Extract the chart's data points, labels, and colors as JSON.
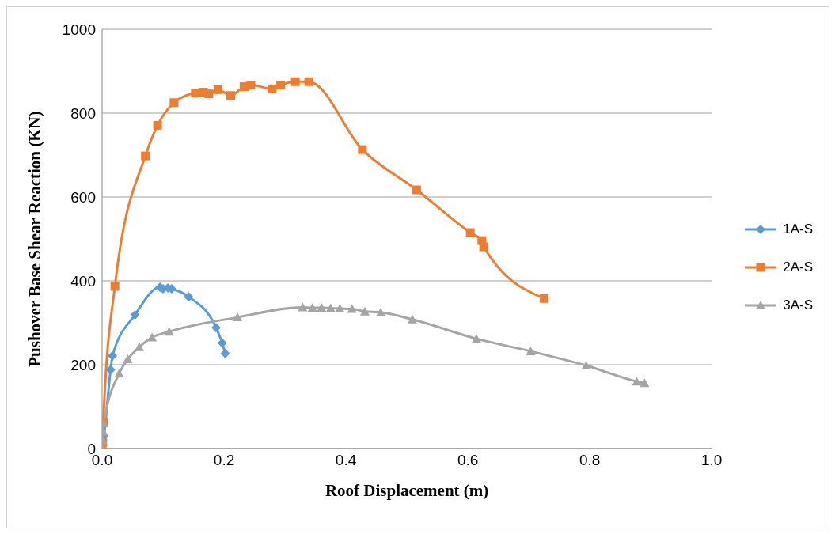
{
  "chart_data": {
    "type": "line",
    "xlabel": "Roof Displacement (m)",
    "ylabel": "Pushover Base Shear Reaction (KN)",
    "xlim": [
      0,
      1
    ],
    "xticks": [
      {
        "value": 0,
        "label": "0.0"
      },
      {
        "value": 0.2,
        "label": "0.2"
      },
      {
        "value": 0.4,
        "label": "0.4"
      },
      {
        "value": 0.6,
        "label": "0.6"
      },
      {
        "value": 0.8,
        "label": "0.8"
      },
      {
        "value": 1,
        "label": "1.0"
      }
    ],
    "ylim": [
      0,
      1000
    ],
    "yticks": [
      0,
      200,
      400,
      600,
      800,
      1000
    ],
    "grid": "y",
    "legend": "right",
    "line_style": "solid",
    "series": [
      {
        "name": "1A-S",
        "color": "#5b9bd5",
        "marker": "diamond",
        "x": [
          0,
          0.003,
          0.014,
          0.017,
          0.054,
          0.095,
          0.1,
          0.108,
          0.114,
          0.142,
          0.187,
          0.197,
          0.202
        ],
        "values": [
          0,
          30,
          188,
          221,
          319,
          385,
          381,
          383,
          381,
          362,
          288,
          252,
          227
        ]
      },
      {
        "name": "2A-S",
        "color": "#ed7d31",
        "marker": "square",
        "x": [
          0,
          0.001,
          0.002,
          0.021,
          0.071,
          0.091,
          0.118,
          0.153,
          0.166,
          0.175,
          0.19,
          0.211,
          0.233,
          0.244,
          0.279,
          0.293,
          0.317,
          0.339,
          0.427,
          0.516,
          0.604,
          0.623,
          0.626,
          0.725
        ],
        "values": [
          0,
          15,
          63,
          387,
          698,
          771,
          825,
          848,
          850,
          846,
          856,
          842,
          863,
          867,
          858,
          867,
          875,
          875,
          713,
          617,
          515,
          496,
          481,
          358
        ]
      },
      {
        "name": "3A-S",
        "color": "#a5a5a5",
        "marker": "triangle",
        "x": [
          0,
          0.001,
          0.002,
          0.003,
          0.028,
          0.042,
          0.061,
          0.082,
          0.11,
          0.222,
          0.329,
          0.345,
          0.36,
          0.375,
          0.39,
          0.41,
          0.431,
          0.457,
          0.509,
          0.614,
          0.703,
          0.794,
          0.877,
          0.89
        ],
        "values": [
          0,
          20,
          40,
          60,
          179,
          213,
          242,
          265,
          279,
          313,
          337,
          336,
          336,
          335,
          334,
          333,
          327,
          325,
          308,
          262,
          232,
          198,
          160,
          156
        ]
      }
    ]
  }
}
